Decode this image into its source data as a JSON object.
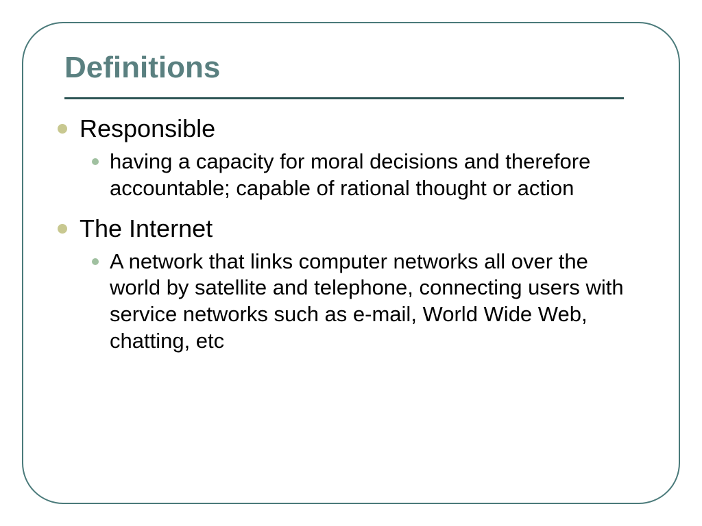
{
  "slide": {
    "title": "Definitions",
    "title_color": "#5a8080",
    "divider_color": "#2d5555",
    "frame_border_color": "#4a7a7a",
    "frame_border_radius": 60,
    "background_color": "#ffffff",
    "bullet_main_color": "#c8c890",
    "bullet_sub_color": "#a0c0a0",
    "title_fontsize": 44,
    "term_fontsize": 36,
    "definition_fontsize": 31,
    "items": [
      {
        "term": "Responsible",
        "definition": "having a capacity for moral decisions and therefore accountable; capable of rational thought or action"
      },
      {
        "term": "The Internet",
        "definition": "A network that links computer networks all over the world by satellite and telephone, connecting users with service networks such as e-mail, World Wide Web, chatting, etc"
      }
    ]
  }
}
